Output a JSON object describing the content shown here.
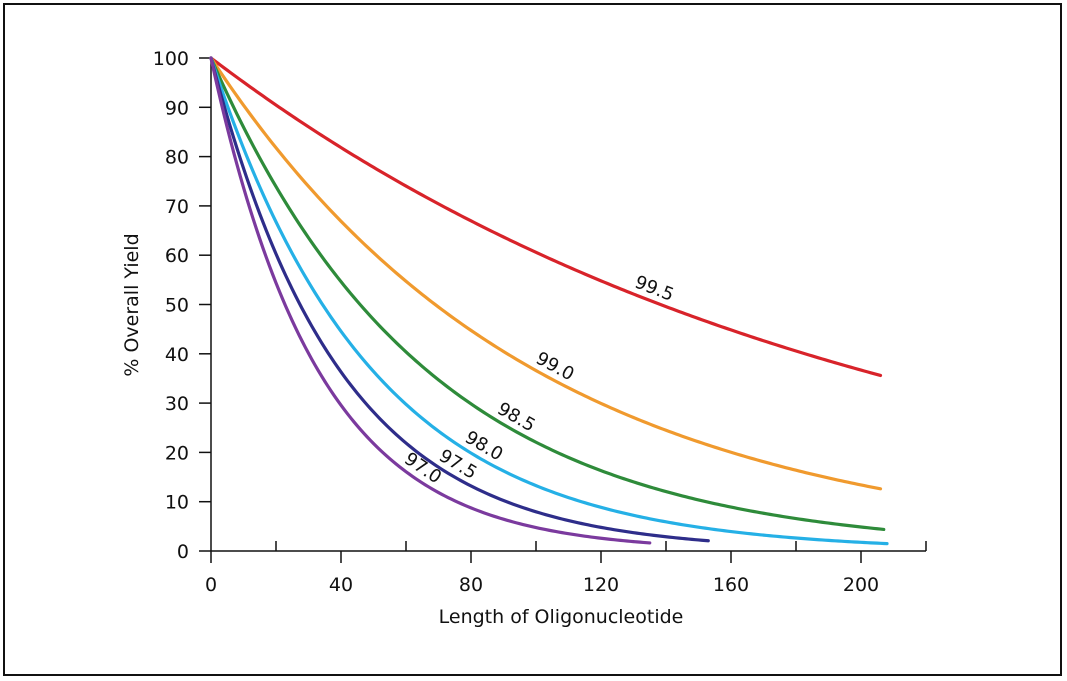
{
  "chart_data": {
    "type": "line",
    "title": "",
    "xlabel": "Length of Oligonucleotide",
    "ylabel": "% Overall Yield",
    "xlim": [
      0,
      220
    ],
    "ylim": [
      0,
      100
    ],
    "xticks_major": [
      0,
      40,
      80,
      120,
      160,
      200
    ],
    "xticks_minor": [
      20,
      60,
      100,
      140,
      180,
      220
    ],
    "yticks": [
      0,
      10,
      20,
      30,
      40,
      50,
      60,
      70,
      80,
      90,
      100
    ],
    "grid": false,
    "legend": "inline-labels",
    "series": [
      {
        "name": "99.5",
        "efficiency": 99.5,
        "x_start": 0,
        "x_end": 206,
        "label_x": 135,
        "color": "#d8232a"
      },
      {
        "name": "99.0",
        "efficiency": 99.0,
        "x_start": 0,
        "x_end": 206,
        "label_x": 104,
        "color": "#f09a2e"
      },
      {
        "name": "98.5",
        "efficiency": 98.5,
        "x_start": 0,
        "x_end": 207,
        "label_x": 92,
        "color": "#2e8b3a"
      },
      {
        "name": "98.0",
        "efficiency": 98.0,
        "x_start": 0,
        "x_end": 208,
        "label_x": 82,
        "color": "#25b0e6"
      },
      {
        "name": "97.5",
        "efficiency": 97.5,
        "x_start": 0,
        "x_end": 153,
        "label_x": 74,
        "color": "#2e2d8a"
      },
      {
        "name": "97.0",
        "efficiency": 97.0,
        "x_start": 0,
        "x_end": 135,
        "label_x": 63,
        "color": "#7b3a9e"
      }
    ]
  }
}
